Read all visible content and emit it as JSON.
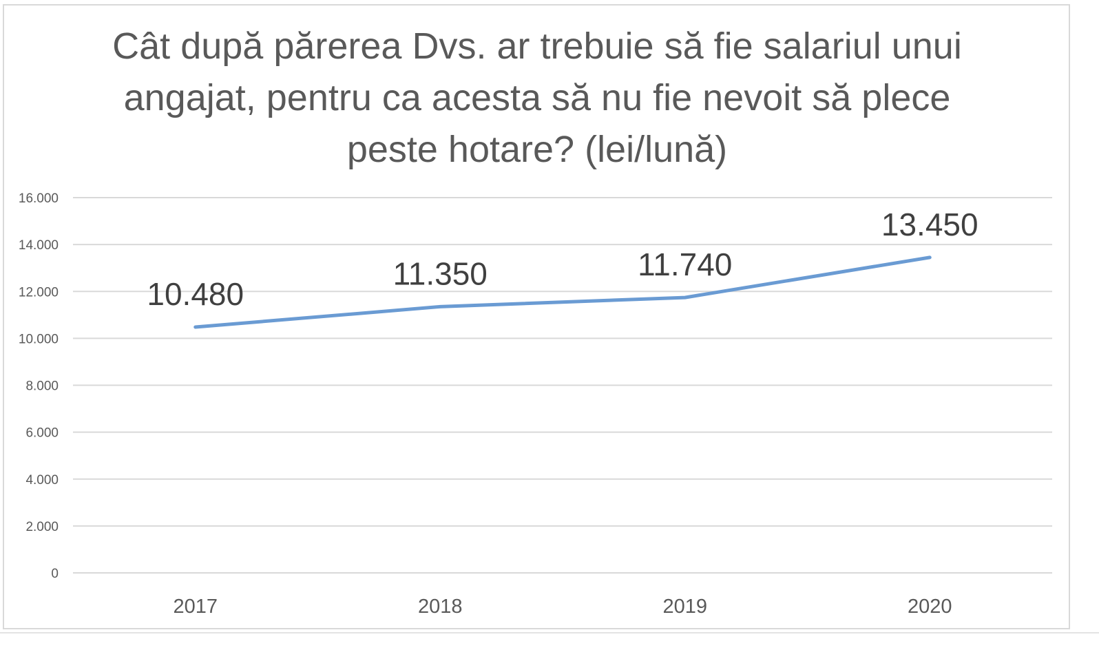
{
  "chart_data": {
    "type": "line",
    "title": "Cât după părerea Dvs. ar trebuie să fie salariul unui angajat, pentru ca acesta să nu fie nevoit să plece peste hotare? (lei/lună)",
    "categories": [
      "2017",
      "2018",
      "2019",
      "2020"
    ],
    "series": [
      {
        "values": [
          10480,
          11350,
          11740,
          13450
        ],
        "labels": [
          "10.480",
          "11.350",
          "11.740",
          "13.450"
        ],
        "color": "#6a9bd3"
      }
    ],
    "y_ticks": [
      "0",
      "2.000",
      "4.000",
      "6.000",
      "8.000",
      "10.000",
      "12.000",
      "14.000",
      "16.000"
    ],
    "ylim": [
      0,
      16000
    ],
    "grid": true,
    "legend": "none",
    "xlabel": "",
    "ylabel": ""
  },
  "colors": {
    "line": "#6a9bd3",
    "grid": "#d9d9d9",
    "title": "#595959",
    "ticks": "#595959",
    "labels": "#404040"
  }
}
